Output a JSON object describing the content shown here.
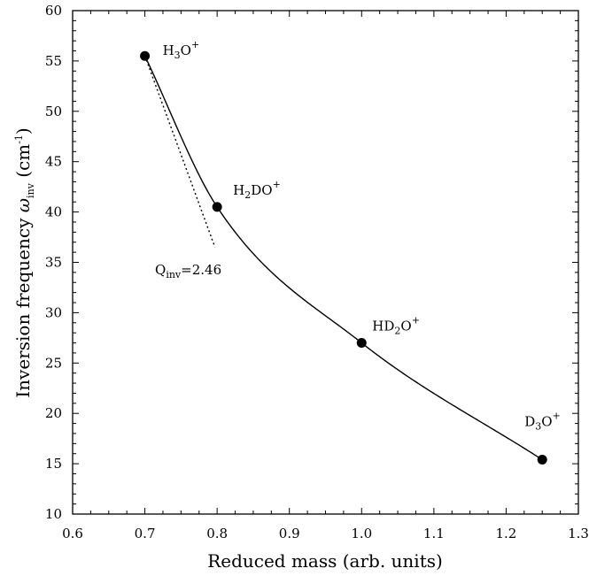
{
  "chart_data": {
    "type": "scatter",
    "xlabel": {
      "main": "Reduced mass (arb. units)"
    },
    "ylabel": {
      "main": "Inversion frequency ",
      "symbol": "ω",
      "symbol_sub": "inv",
      "unit_open": " (cm",
      "unit_sup": "-1",
      "unit_close": ")"
    },
    "xlim": [
      0.6,
      1.3
    ],
    "ylim": [
      10,
      60
    ],
    "x_ticks": [
      0.6,
      0.7,
      0.8,
      0.9,
      1.0,
      1.1,
      1.2,
      1.3
    ],
    "x_tick_labels": [
      "0.6",
      "0.7",
      "0.8",
      "0.9",
      "1.0",
      "1.1",
      "1.2",
      "1.3"
    ],
    "y_ticks": [
      10,
      15,
      20,
      25,
      30,
      35,
      40,
      45,
      50,
      55,
      60
    ],
    "y_tick_labels": [
      "10",
      "15",
      "20",
      "25",
      "30",
      "35",
      "40",
      "45",
      "50",
      "55",
      "60"
    ],
    "grid": false,
    "points": [
      {
        "x": 0.7,
        "y": 55.5,
        "label_base": "H",
        "label_sub": "3",
        "label_mid": "O",
        "label_sup": "+"
      },
      {
        "x": 0.8,
        "y": 40.5,
        "label_base": "H",
        "label_sub": "2",
        "label_mid": "DO",
        "label_sup": "+"
      },
      {
        "x": 1.0,
        "y": 27.0,
        "label_base": "HD",
        "label_sub": "2",
        "label_mid": "O",
        "label_sup": "+"
      },
      {
        "x": 1.25,
        "y": 15.4,
        "label_base": "D",
        "label_sub": "3",
        "label_mid": "O",
        "label_sup": "+"
      }
    ],
    "fit_curve": {
      "style": "solid",
      "x_range": [
        0.7,
        1.25
      ]
    },
    "tangent_line": {
      "style": "dotted",
      "x": [
        0.7,
        0.797
      ],
      "y": [
        55.5,
        36.5
      ]
    },
    "annotation": {
      "base": "Q",
      "sub": "inv",
      "rest": "=2.46"
    }
  }
}
